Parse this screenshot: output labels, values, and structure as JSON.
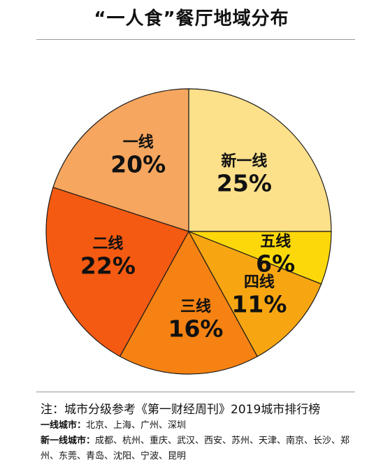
{
  "title": "“一人食”餐厅地域分布",
  "chart_data": {
    "type": "pie",
    "title": "“一人食”餐厅地域分布",
    "start_angle_deg": 0,
    "direction": "counterclockwise",
    "slices": [
      {
        "name": "新一线",
        "value": 25,
        "label": "25%",
        "color": "#FCE08A"
      },
      {
        "name": "一线",
        "value": 20,
        "label": "20%",
        "color": "#F6A65E"
      },
      {
        "name": "二线",
        "value": 22,
        "label": "22%",
        "color": "#F45A11"
      },
      {
        "name": "三线",
        "value": 16,
        "label": "16%",
        "color": "#F58212"
      },
      {
        "name": "四线",
        "value": 11,
        "label": "11%",
        "color": "#F7A612"
      },
      {
        "name": "五线",
        "value": 6,
        "label": "6%",
        "color": "#FCD80A"
      }
    ]
  },
  "notes": {
    "main": "注：城市分级参考《第一财经周刊》2019城市排行榜",
    "tier1_key": "一线城市：",
    "tier1_list": "北京、上海、广州、深圳",
    "newtier1_key": "新一线城市：",
    "newtier1_list": "成都、杭州、重庆、武汉、西安、苏州、天津、南京、长沙、郑州、东莞、青岛、沈阳、宁波、昆明"
  }
}
